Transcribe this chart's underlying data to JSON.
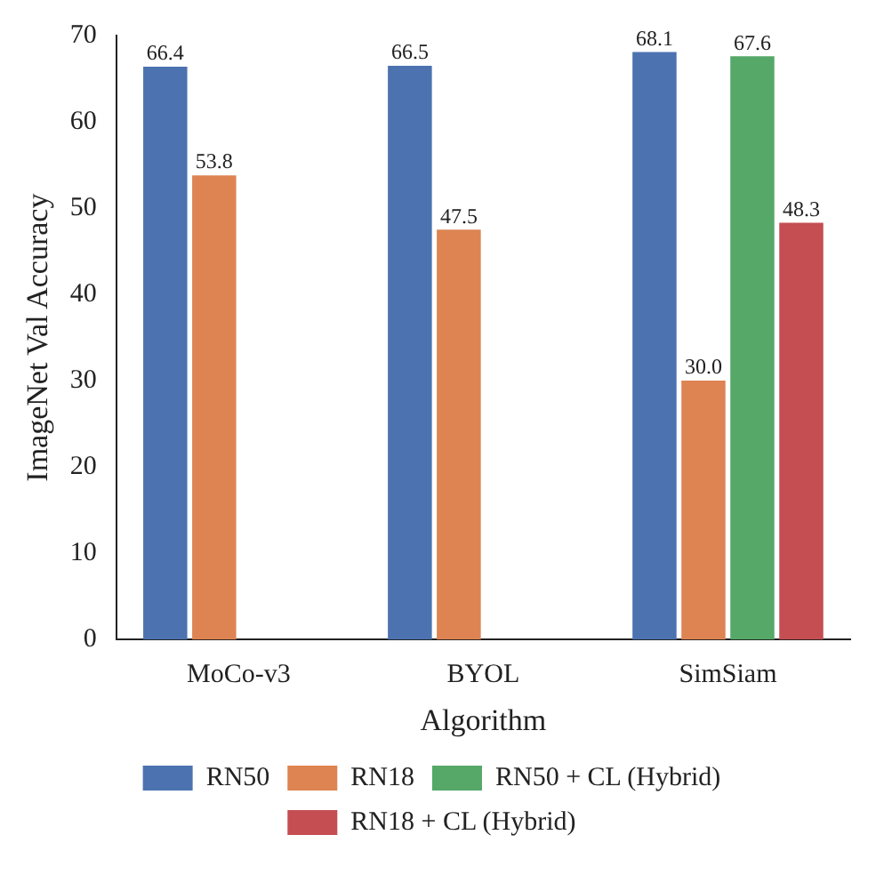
{
  "chart_data": {
    "type": "bar",
    "xlabel": "Algorithm",
    "ylabel": "ImageNet Val Accuracy",
    "categories": [
      "MoCo-v3",
      "BYOL",
      "SimSiam"
    ],
    "series": [
      {
        "name": "RN50",
        "color": "#4c72b0",
        "values": [
          66.4,
          66.5,
          68.1
        ],
        "value_labels": [
          "66.4",
          "66.5",
          "68.1"
        ]
      },
      {
        "name": "RN18",
        "color": "#dd8452",
        "values": [
          53.8,
          47.5,
          30.0
        ],
        "value_labels": [
          "53.8",
          "47.5",
          "30.0"
        ]
      },
      {
        "name": "RN50 + CL (Hybrid)",
        "color": "#55a868",
        "values": [
          null,
          null,
          67.6
        ],
        "value_labels": [
          null,
          null,
          "67.6"
        ]
      },
      {
        "name": "RN18 + CL (Hybrid)",
        "color": "#c44e52",
        "values": [
          null,
          null,
          48.3
        ],
        "value_labels": [
          null,
          null,
          "48.3"
        ]
      }
    ],
    "ylim": [
      0,
      70
    ],
    "yticks": [
      0,
      10,
      20,
      30,
      40,
      50,
      60,
      70
    ],
    "grid": false,
    "legend": "bottom"
  }
}
